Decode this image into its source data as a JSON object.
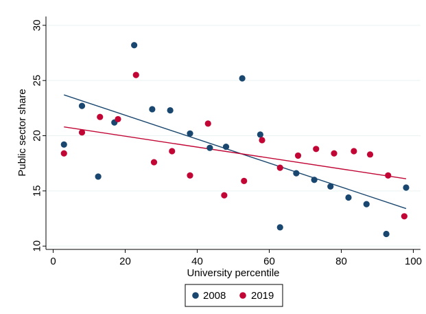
{
  "chart_data": {
    "type": "scatter",
    "title": "",
    "xlabel": "University percentile",
    "ylabel": "Public sector share",
    "xlim": [
      -2,
      102
    ],
    "ylim": [
      9.7,
      30.8
    ],
    "xticks": [
      0,
      20,
      40,
      60,
      80,
      100
    ],
    "yticks": [
      10,
      15,
      20,
      25,
      30
    ],
    "grid": true,
    "legend_position": "bottom",
    "series": [
      {
        "name": "2008",
        "color": "#1a476f",
        "x": [
          3,
          8,
          12.5,
          17,
          22.5,
          27.5,
          32.5,
          38,
          43.5,
          48,
          52.5,
          57.5,
          63,
          67.5,
          72.5,
          77,
          82,
          87,
          92.5,
          98
        ],
        "y": [
          19.2,
          22.7,
          16.3,
          21.2,
          28.2,
          22.4,
          22.3,
          20.2,
          18.9,
          19.0,
          25.2,
          20.1,
          11.7,
          16.6,
          16.0,
          15.4,
          14.4,
          13.8,
          11.1,
          15.3
        ],
        "fit": {
          "x": [
            3,
            98
          ],
          "y": [
            23.7,
            13.4
          ]
        }
      },
      {
        "name": "2019",
        "color": "#c10534",
        "x": [
          3,
          8,
          13,
          18,
          23,
          28,
          33,
          38,
          43,
          47.5,
          53,
          58,
          63,
          68,
          73,
          78,
          83.5,
          88,
          93,
          97.5
        ],
        "y": [
          18.4,
          20.3,
          21.7,
          21.5,
          25.5,
          17.6,
          18.6,
          16.4,
          21.1,
          14.6,
          15.9,
          19.6,
          17.1,
          18.2,
          18.8,
          18.4,
          18.6,
          18.3,
          16.4,
          12.7
        ],
        "fit": {
          "x": [
            3,
            98
          ],
          "y": [
            20.8,
            16.1
          ]
        }
      }
    ]
  }
}
